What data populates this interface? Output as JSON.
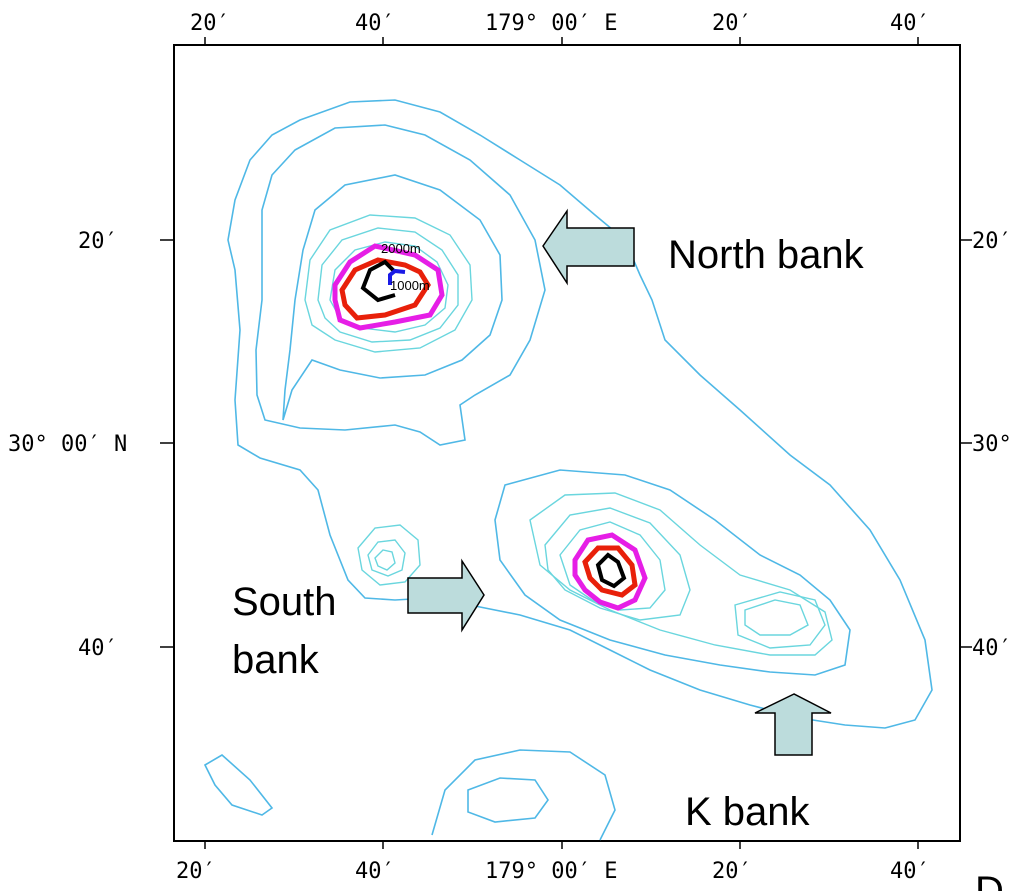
{
  "map": {
    "axes": {
      "top_ticks": [
        "20′",
        "40′",
        "179° 00′ E",
        "20′",
        "40′"
      ],
      "bottom_ticks": [
        "20′",
        "40′",
        "179° 00′ E",
        "20′",
        "40′"
      ],
      "left_ticks": [
        "20′",
        "30° 00′ N",
        "40′"
      ],
      "right_ticks": [
        "20′",
        "30°",
        "40′"
      ]
    },
    "labels": {
      "north_bank": "North bank",
      "south_bank_line1": "South",
      "south_bank_line2": "bank",
      "k_bank": "K bank",
      "corner_partial": "D"
    },
    "contour_labels": {
      "c2000": "2000m",
      "c1000": "1000m"
    },
    "colors": {
      "outer_contour": "#4fb8e6",
      "inner_contour": "#6ad6de",
      "magenta_contour": "#e61ee6",
      "red_contour": "#e8200a",
      "black_contour": "#000000",
      "blue_contour": "#1a1ae6",
      "arrow_fill": "#bcdcdc"
    }
  }
}
